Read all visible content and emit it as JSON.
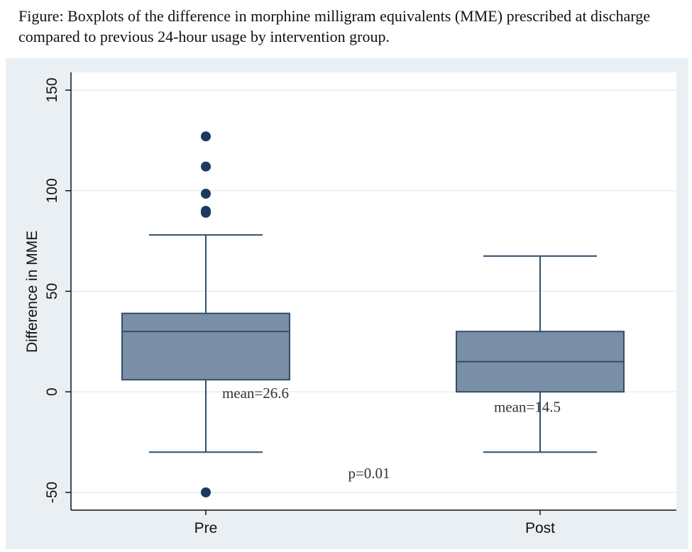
{
  "caption": "Figure: Boxplots of the difference in morphine milligram equivalents (MME) prescribed at discharge compared to previous 24-hour usage by intervention group.",
  "colors": {
    "box_fill": "#7a8fa6",
    "box_stroke": "#2f4f6f",
    "outlier": "#1c3a5e",
    "plot_bg": "#ffffff",
    "outer_bg": "#e9eff3",
    "grid": "#e4ecf1"
  },
  "chart_data": {
    "type": "box",
    "title": "",
    "xlabel": "",
    "ylabel": "Difference in MME",
    "ylim": [
      -55,
      155
    ],
    "yticks": [
      -50,
      0,
      50,
      100,
      150
    ],
    "grid": true,
    "categories": [
      "Pre",
      "Post"
    ],
    "boxes": [
      {
        "name": "Pre",
        "whisker_low": -30,
        "q1": 6,
        "median": 30,
        "q3": 39,
        "whisker_high": 78,
        "outliers": [
          127,
          112,
          98.5,
          90,
          89,
          -50
        ],
        "mean_label": "mean=26.6"
      },
      {
        "name": "Post",
        "whisker_low": -30,
        "q1": 0,
        "median": 15,
        "q3": 30,
        "whisker_high": 67.5,
        "outliers": [],
        "mean_label": "mean=14.5"
      }
    ],
    "annotations": [
      "p=0.01"
    ]
  }
}
